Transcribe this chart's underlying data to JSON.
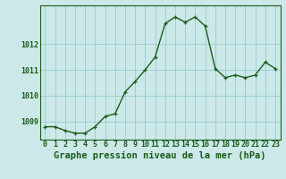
{
  "x": [
    0,
    1,
    2,
    3,
    4,
    5,
    6,
    7,
    8,
    9,
    10,
    11,
    12,
    13,
    14,
    15,
    16,
    17,
    18,
    19,
    20,
    21,
    22,
    23
  ],
  "y": [
    1008.8,
    1008.8,
    1008.65,
    1008.55,
    1008.55,
    1008.8,
    1009.2,
    1009.3,
    1010.15,
    1010.55,
    1011.0,
    1011.5,
    1012.8,
    1013.05,
    1012.85,
    1013.05,
    1012.7,
    1011.05,
    1010.7,
    1010.8,
    1010.7,
    1010.8,
    1011.3,
    1011.05
  ],
  "line_color": "#1a5c1a",
  "marker_color": "#1a5c1a",
  "bg_color": "#cce8e8",
  "grid_color": "#99cccc",
  "axis_color": "#1a5c1a",
  "title": "Graphe pression niveau de la mer (hPa)",
  "ylim_min": 1008.3,
  "ylim_max": 1013.5,
  "yticks": [
    1009,
    1010,
    1011
  ],
  "ytick_top": 1012,
  "xticks": [
    0,
    1,
    2,
    3,
    4,
    5,
    6,
    7,
    8,
    9,
    10,
    11,
    12,
    13,
    14,
    15,
    16,
    17,
    18,
    19,
    20,
    21,
    22,
    23
  ],
  "title_fontsize": 7.5,
  "tick_fontsize": 6,
  "line_width": 1.0,
  "marker_size": 2.5
}
